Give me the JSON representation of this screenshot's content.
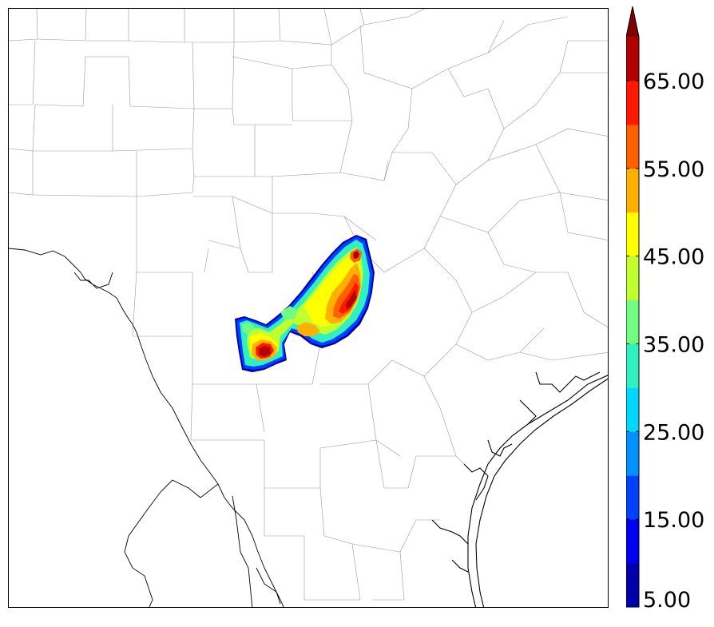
{
  "colorbar": {
    "levels": [
      5,
      10,
      15,
      20,
      25,
      30,
      35,
      40,
      45,
      50,
      55,
      60,
      65,
      70
    ],
    "colors": [
      "#0000aa",
      "#0000f0",
      "#0040ff",
      "#0090ff",
      "#00d8ff",
      "#30f0c0",
      "#70ff80",
      "#c0ff30",
      "#ffff00",
      "#ffb000",
      "#ff6000",
      "#ff1800",
      "#b00000"
    ],
    "extend_color": "#800000",
    "extend": "max",
    "tick_labels": [
      "5.00",
      "15.00",
      "25.00",
      "35.00",
      "45.00",
      "55.00",
      "65.00"
    ],
    "tick_values": [
      5,
      15,
      25,
      35,
      45,
      55,
      65
    ]
  },
  "map": {
    "boundary_color": "#000000",
    "county_color": "#888888"
  }
}
